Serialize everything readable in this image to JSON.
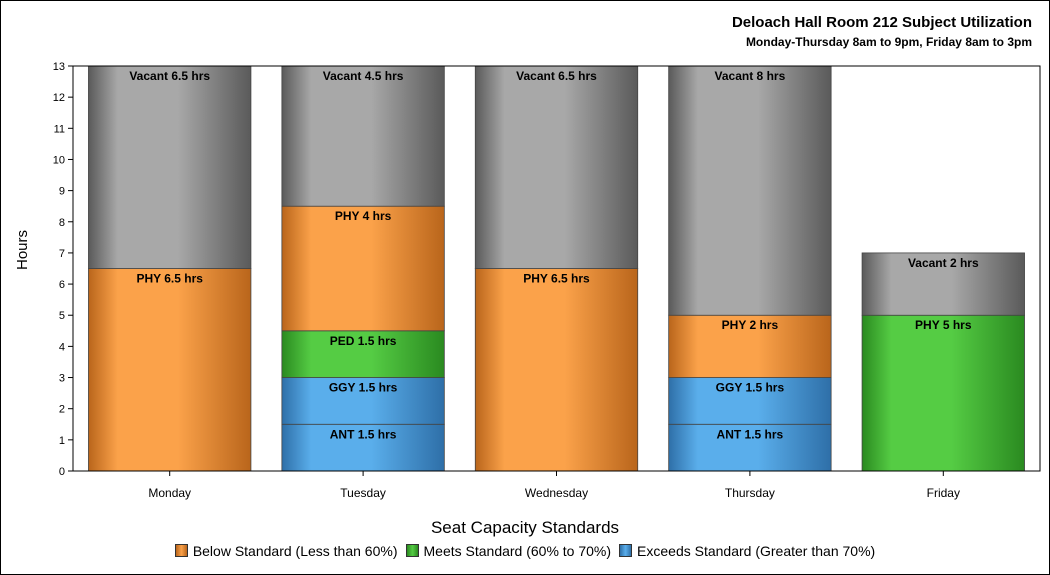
{
  "chart_data": {
    "type": "bar",
    "stacked": true,
    "title": "Deloach Hall Room 212 Subject Utilization",
    "subtitle": "Monday-Thursday 8am to 9pm, Friday 8am to 3pm",
    "ylabel": "Hours",
    "xlabel": "",
    "ylim": [
      0,
      13
    ],
    "yticks": [
      0,
      1,
      2,
      3,
      4,
      5,
      6,
      7,
      8,
      9,
      10,
      11,
      12,
      13
    ],
    "categories": [
      "Monday",
      "Tuesday",
      "Wednesday",
      "Thursday",
      "Friday"
    ],
    "bars": [
      {
        "category": "Monday",
        "segments": [
          {
            "label": "PHY 6.5 hrs",
            "value": 6.5,
            "group": "below"
          },
          {
            "label": "Vacant 6.5 hrs",
            "value": 6.5,
            "group": "vacant"
          }
        ]
      },
      {
        "category": "Tuesday",
        "segments": [
          {
            "label": "ANT 1.5 hrs",
            "value": 1.5,
            "group": "exceeds"
          },
          {
            "label": "GGY 1.5 hrs",
            "value": 1.5,
            "group": "exceeds"
          },
          {
            "label": "PED 1.5 hrs",
            "value": 1.5,
            "group": "meets"
          },
          {
            "label": "PHY 4 hrs",
            "value": 4,
            "group": "below"
          },
          {
            "label": "Vacant 4.5 hrs",
            "value": 4.5,
            "group": "vacant"
          }
        ]
      },
      {
        "category": "Wednesday",
        "segments": [
          {
            "label": "PHY 6.5 hrs",
            "value": 6.5,
            "group": "below"
          },
          {
            "label": "Vacant 6.5 hrs",
            "value": 6.5,
            "group": "vacant"
          }
        ]
      },
      {
        "category": "Thursday",
        "segments": [
          {
            "label": "ANT 1.5 hrs",
            "value": 1.5,
            "group": "exceeds"
          },
          {
            "label": "GGY 1.5 hrs",
            "value": 1.5,
            "group": "exceeds"
          },
          {
            "label": "PHY 2 hrs",
            "value": 2,
            "group": "below"
          },
          {
            "label": "Vacant 8 hrs",
            "value": 8,
            "group": "vacant"
          }
        ]
      },
      {
        "category": "Friday",
        "segments": [
          {
            "label": "PHY 5 hrs",
            "value": 5,
            "group": "meets"
          },
          {
            "label": "Vacant 2 hrs",
            "value": 2,
            "group": "vacant"
          }
        ]
      }
    ],
    "legend_title": "Seat Capacity Standards",
    "legend_position": "bottom",
    "legend": [
      {
        "group": "below",
        "label": "Below Standard (Less than 60%)"
      },
      {
        "group": "meets",
        "label": "Meets Standard (60% to 70%)"
      },
      {
        "group": "exceeds",
        "label": "Exceeds Standard (Greater than 70%)"
      }
    ],
    "colors": {
      "below": {
        "light": "#FBA24A",
        "dark": "#B9651B"
      },
      "meets": {
        "light": "#55CC44",
        "dark": "#2A8A20"
      },
      "exceeds": {
        "light": "#5AAEEB",
        "dark": "#2E6FA8"
      },
      "vacant": {
        "light": "#A8A8A8",
        "dark": "#5A5A5A"
      }
    },
    "grid": false
  }
}
